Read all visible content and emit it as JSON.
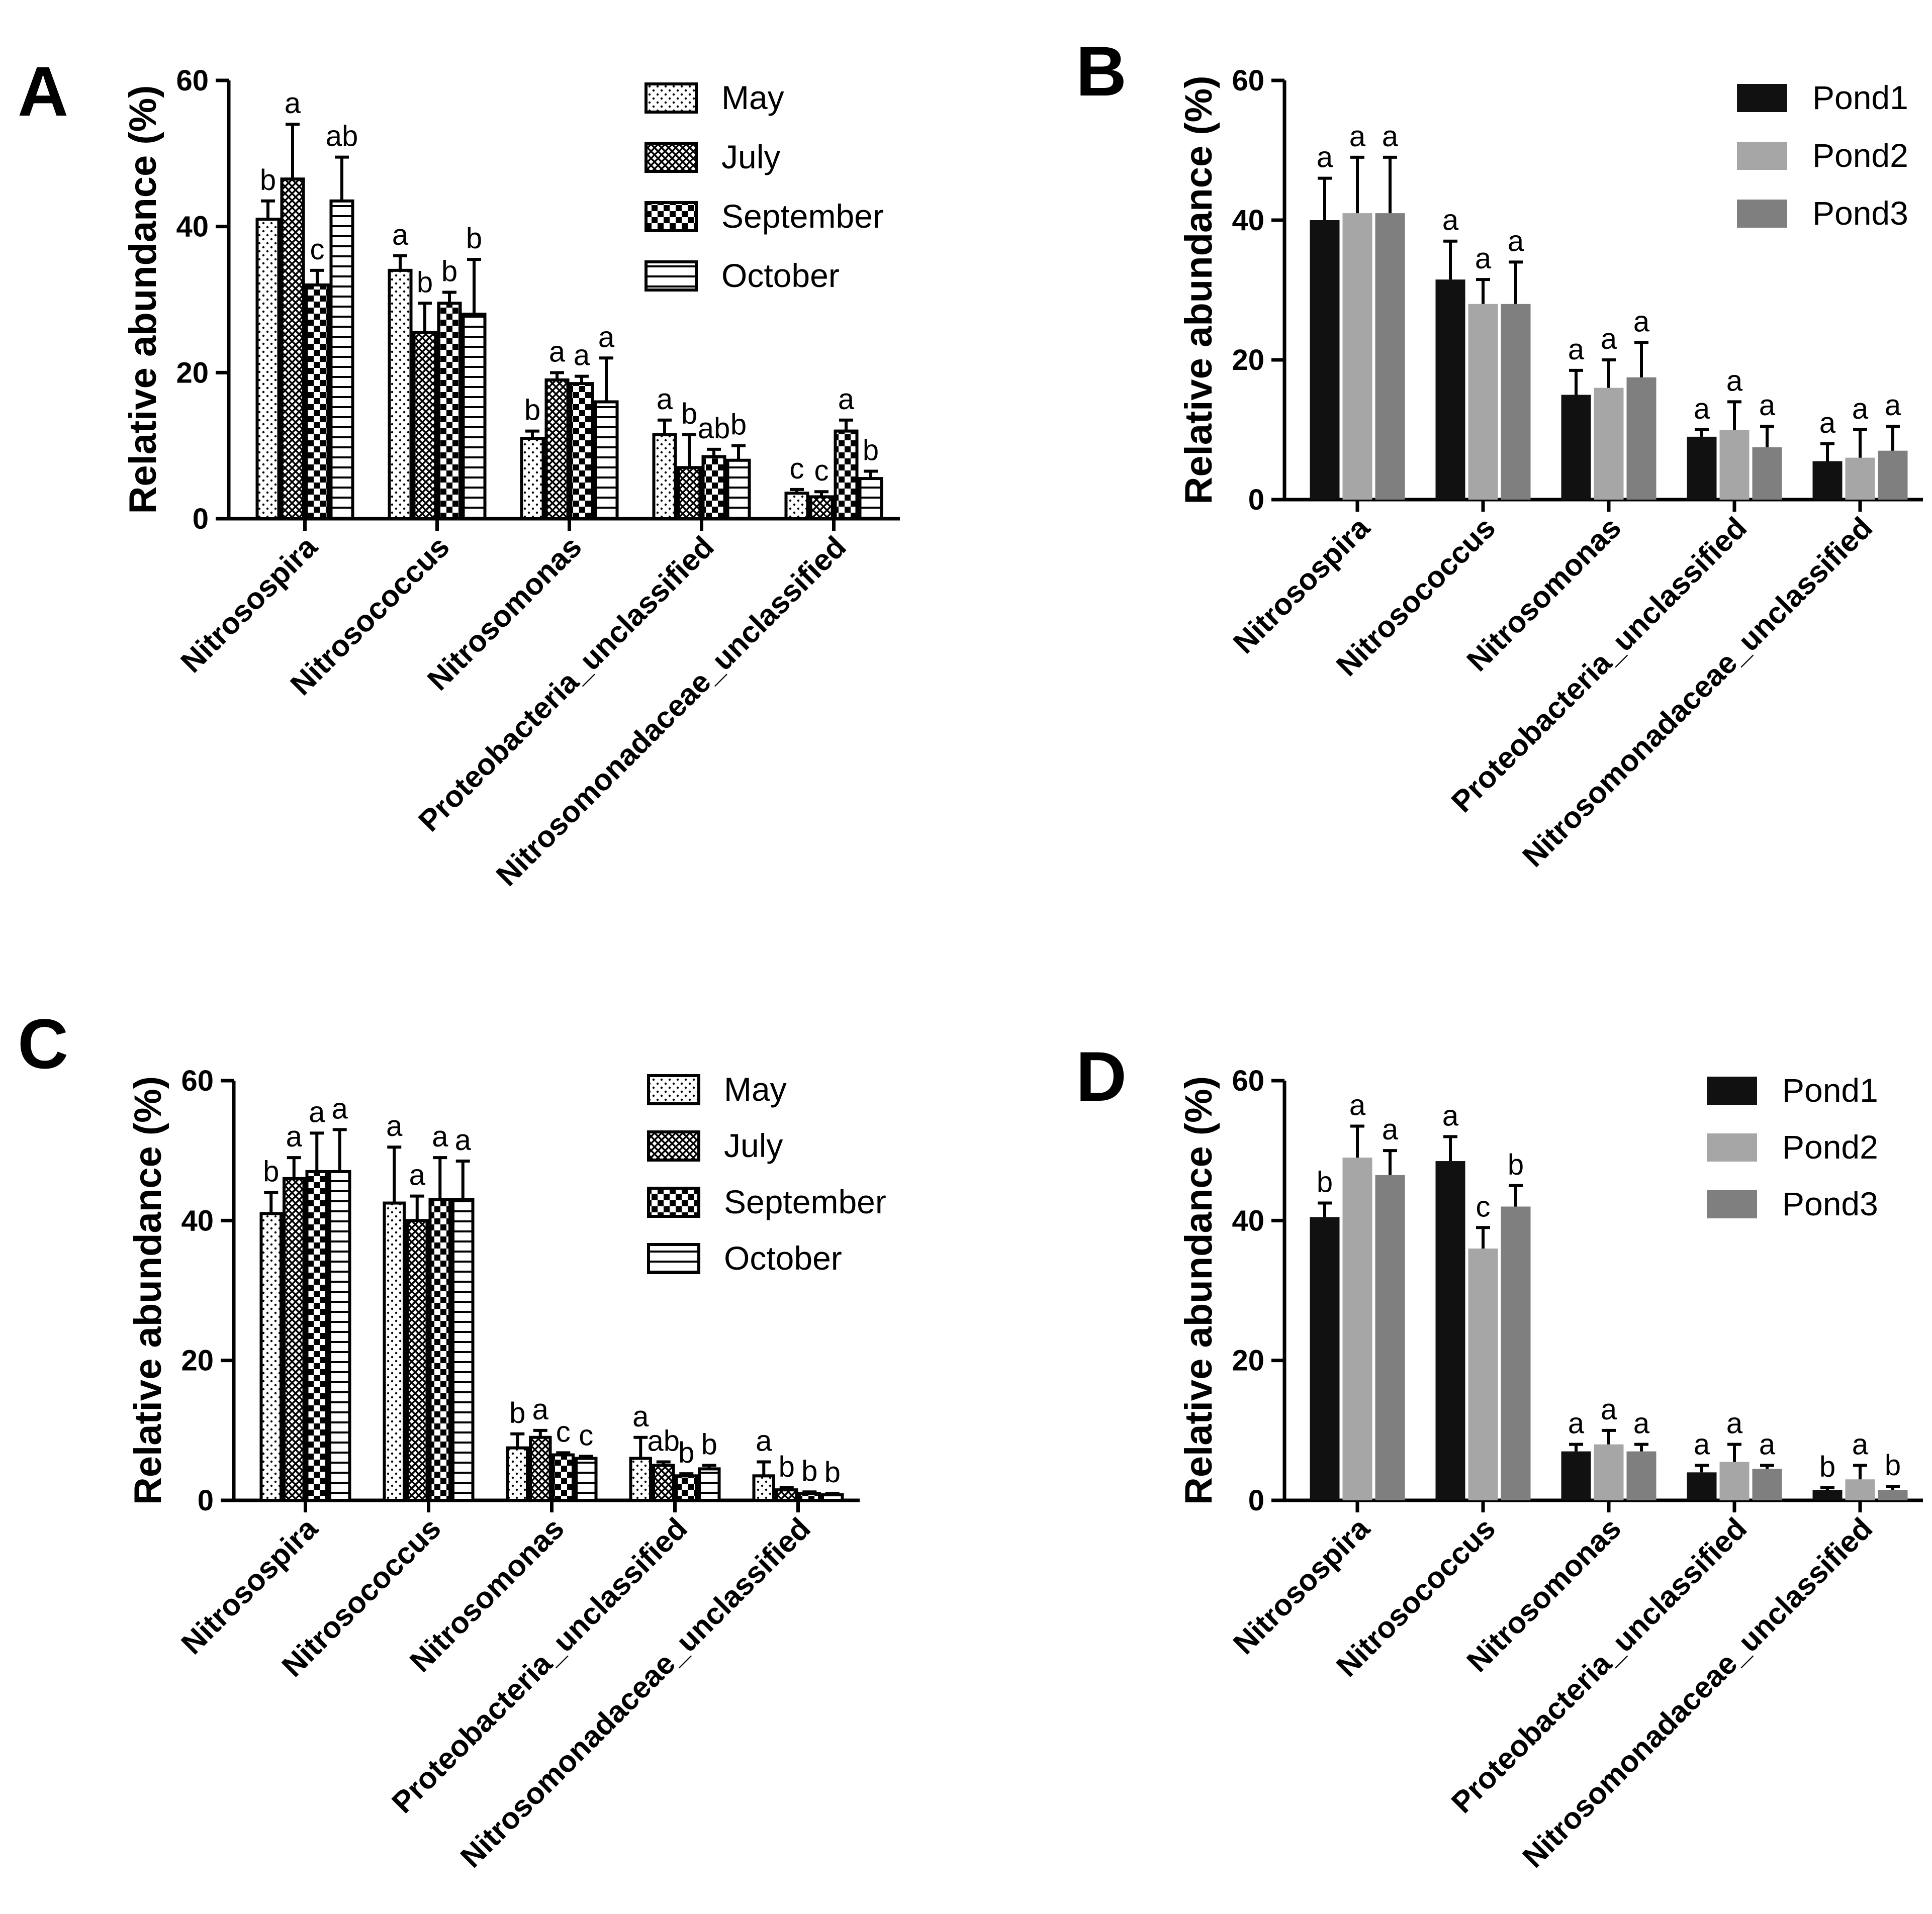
{
  "chart_data": [
    {
      "panel": "A",
      "type": "bar",
      "ylabel": "Relative abundance (%)",
      "ylim": [
        0,
        60
      ],
      "yticks": [
        0,
        20,
        40,
        60
      ],
      "categories": [
        "Nitrosospira",
        "Nitrosococcus",
        "Nitrosomonas",
        "Proteobacteria_unclassified",
        "Nitrosomonadaceae_unclassified"
      ],
      "legend_position": "top-right",
      "series": [
        {
          "name": "May",
          "pattern": "dots",
          "values": [
            41,
            34,
            11,
            11.5,
            3.5
          ],
          "errors": [
            2.5,
            2,
            1,
            2,
            0.5
          ],
          "letters": [
            "b",
            "a",
            "b",
            "a",
            "c"
          ]
        },
        {
          "name": "July",
          "pattern": "crosshatch",
          "values": [
            46.5,
            25.5,
            19,
            7,
            3
          ],
          "errors": [
            7.5,
            4,
            1,
            4.5,
            0.7
          ],
          "letters": [
            "a",
            "b",
            "a",
            "b",
            "c"
          ]
        },
        {
          "name": "September",
          "pattern": "checker",
          "values": [
            32,
            29.5,
            18.5,
            8.5,
            12
          ],
          "errors": [
            2,
            1.5,
            1,
            1,
            1.5
          ],
          "letters": [
            "c",
            "b",
            "a",
            "ab",
            "a"
          ]
        },
        {
          "name": "October",
          "pattern": "stripes",
          "values": [
            43.5,
            28,
            16,
            8,
            5.5
          ],
          "errors": [
            6,
            7.5,
            6,
            2,
            1
          ],
          "letters": [
            "ab",
            "b",
            "a",
            "b",
            "b"
          ]
        }
      ]
    },
    {
      "panel": "B",
      "type": "bar",
      "ylabel": "Relative abundance (%)",
      "ylim": [
        0,
        60
      ],
      "yticks": [
        0,
        20,
        40,
        60
      ],
      "categories": [
        "Nitrosospira",
        "Nitrosococcus",
        "Nitrosomonas",
        "Proteobacteria_unclassified",
        "Nitrosomonadaceae_unclassified"
      ],
      "legend_position": "top-right",
      "series": [
        {
          "name": "Pond1",
          "color": "#111111",
          "values": [
            40,
            31.5,
            15,
            9,
            5.5
          ],
          "errors": [
            6,
            5.5,
            3.5,
            1,
            2.5
          ],
          "letters": [
            "a",
            "a",
            "a",
            "a",
            "a"
          ]
        },
        {
          "name": "Pond2",
          "color": "#a6a6a6",
          "values": [
            41,
            28,
            16,
            10,
            6
          ],
          "errors": [
            8,
            3.5,
            4,
            4,
            4
          ],
          "letters": [
            "a",
            "a",
            "a",
            "a",
            "a"
          ]
        },
        {
          "name": "Pond3",
          "color": "#7f7f7f",
          "values": [
            41,
            28,
            17.5,
            7.5,
            7
          ],
          "errors": [
            8,
            6,
            5,
            3,
            3.5
          ],
          "letters": [
            "a",
            "a",
            "a",
            "a",
            "a"
          ]
        }
      ]
    },
    {
      "panel": "C",
      "type": "bar",
      "ylabel": "Relative abundance (%)",
      "ylim": [
        0,
        60
      ],
      "yticks": [
        0,
        20,
        40,
        60
      ],
      "categories": [
        "Nitrosospira",
        "Nitrosococcus",
        "Nitrosomonas",
        "Proteobacteria_unclassified",
        "Nitrosomonadaceae_unclassified"
      ],
      "legend_position": "top-right",
      "series": [
        {
          "name": "May",
          "pattern": "dots",
          "values": [
            41,
            42.5,
            7.5,
            6,
            3.5
          ],
          "errors": [
            3,
            8,
            2,
            3,
            2
          ],
          "letters": [
            "b",
            "a",
            "b",
            "a",
            "a"
          ]
        },
        {
          "name": "July",
          "pattern": "crosshatch",
          "values": [
            46,
            40,
            9,
            5,
            1.5
          ],
          "errors": [
            3,
            3.5,
            1,
            0.5,
            0.3
          ],
          "letters": [
            "a",
            "a",
            "a",
            "ab",
            "b"
          ]
        },
        {
          "name": "September",
          "pattern": "checker",
          "values": [
            47,
            43,
            6.5,
            3.5,
            1
          ],
          "errors": [
            5.5,
            6,
            0.3,
            0.3,
            0.2
          ],
          "letters": [
            "a",
            "a",
            "c",
            "b",
            "b"
          ]
        },
        {
          "name": "October",
          "pattern": "stripes",
          "values": [
            47,
            43,
            6,
            4.5,
            0.8
          ],
          "errors": [
            6,
            5.5,
            0.3,
            0.5,
            0.2
          ],
          "letters": [
            "a",
            "a",
            "c",
            "b",
            "b"
          ]
        }
      ]
    },
    {
      "panel": "D",
      "type": "bar",
      "ylabel": "Relative abundance (%)",
      "ylim": [
        0,
        60
      ],
      "yticks": [
        0,
        20,
        40,
        60
      ],
      "categories": [
        "Nitrosospira",
        "Nitrosococcus",
        "Nitrosomonas",
        "Proteobacteria_unclassified",
        "Nitrosomonadaceae_unclassified"
      ],
      "legend_position": "top-right",
      "series": [
        {
          "name": "Pond1",
          "color": "#111111",
          "values": [
            40.5,
            48.5,
            7,
            4,
            1.5
          ],
          "errors": [
            2,
            3.5,
            1,
            1,
            0.3
          ],
          "letters": [
            "b",
            "a",
            "a",
            "a",
            "b"
          ]
        },
        {
          "name": "Pond2",
          "color": "#a6a6a6",
          "values": [
            49,
            36,
            8,
            5.5,
            3
          ],
          "errors": [
            4.5,
            3,
            2,
            2.5,
            2
          ],
          "letters": [
            "a",
            "c",
            "a",
            "a",
            "a"
          ]
        },
        {
          "name": "Pond3",
          "color": "#7f7f7f",
          "values": [
            46.5,
            42,
            7,
            4.5,
            1.5
          ],
          "errors": [
            3.5,
            3,
            1,
            0.5,
            0.5
          ],
          "letters": [
            "a",
            "b",
            "a",
            "a",
            "b"
          ]
        }
      ]
    }
  ]
}
